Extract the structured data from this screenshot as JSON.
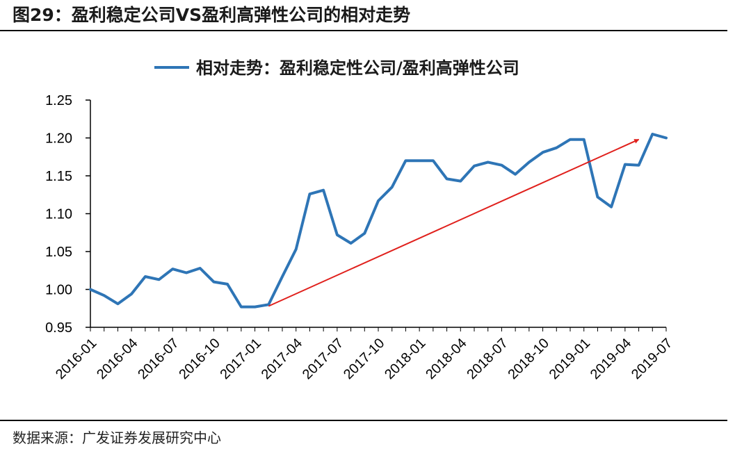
{
  "header": {
    "figure_title": "图29：盈利稳定公司VS盈利高弹性公司的相对走势"
  },
  "footer": {
    "source": "数据来源：广发证券发展研究中心"
  },
  "chart_data": {
    "type": "line",
    "title": "",
    "xlabel": "",
    "ylabel": "",
    "ylim": [
      0.95,
      1.25
    ],
    "yticks": [
      0.95,
      1.0,
      1.05,
      1.1,
      1.15,
      1.2,
      1.25
    ],
    "ytick_labels": [
      "0.95",
      "1.00",
      "1.05",
      "1.10",
      "1.15",
      "1.20",
      "1.25"
    ],
    "xtick_labels": [
      "2016-01",
      "2016-04",
      "2016-07",
      "2016-10",
      "2017-01",
      "2017-04",
      "2017-07",
      "2017-10",
      "2018-01",
      "2018-04",
      "2018-07",
      "2018-10",
      "2019-01",
      "2019-04",
      "2019-07"
    ],
    "grid": false,
    "legend_position": "top-center",
    "colors": {
      "series": "#2E75B6",
      "arrow": "#E0201C"
    },
    "x": [
      "2016-01",
      "2016-02",
      "2016-03",
      "2016-04",
      "2016-05",
      "2016-06",
      "2016-07",
      "2016-08",
      "2016-09",
      "2016-10",
      "2016-11",
      "2016-12",
      "2017-01",
      "2017-02",
      "2017-03",
      "2017-04",
      "2017-05",
      "2017-06",
      "2017-07",
      "2017-08",
      "2017-09",
      "2017-10",
      "2017-11",
      "2017-12",
      "2018-01",
      "2018-02",
      "2018-03",
      "2018-04",
      "2018-05",
      "2018-06",
      "2018-07",
      "2018-08",
      "2018-09",
      "2018-10",
      "2018-11",
      "2018-12",
      "2019-01",
      "2019-02",
      "2019-03",
      "2019-04",
      "2019-05",
      "2019-06",
      "2019-07"
    ],
    "series": [
      {
        "name": "相对走势：盈利稳定性公司/盈利高弹性公司",
        "values": [
          1.0,
          0.992,
          0.981,
          0.994,
          1.017,
          1.013,
          1.027,
          1.022,
          1.028,
          1.01,
          1.007,
          0.977,
          0.977,
          0.98,
          1.017,
          1.053,
          1.126,
          1.131,
          1.072,
          1.061,
          1.074,
          1.117,
          1.135,
          1.17,
          1.17,
          1.17,
          1.146,
          1.143,
          1.163,
          1.168,
          1.164,
          1.152,
          1.168,
          1.181,
          1.187,
          1.198,
          1.198,
          1.122,
          1.109,
          1.165,
          1.164,
          1.205,
          1.2
        ]
      }
    ],
    "annotations": [
      {
        "type": "arrow",
        "from": {
          "x": "2017-02",
          "y": 0.978
        },
        "to": {
          "x": "2019-05",
          "y": 1.198
        }
      }
    ]
  }
}
